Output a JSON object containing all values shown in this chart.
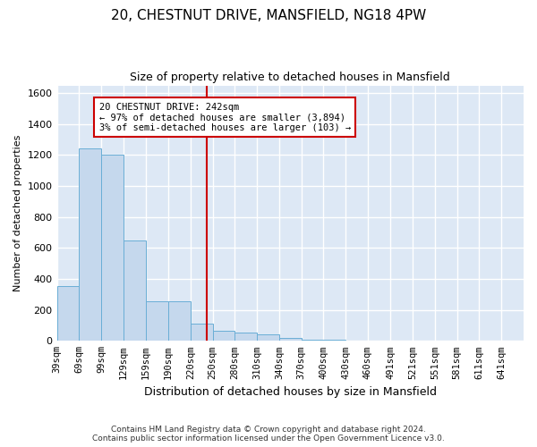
{
  "title": "20, CHESTNUT DRIVE, MANSFIELD, NG18 4PW",
  "subtitle": "Size of property relative to detached houses in Mansfield",
  "xlabel": "Distribution of detached houses by size in Mansfield",
  "ylabel": "Number of detached properties",
  "footer_line1": "Contains HM Land Registry data © Crown copyright and database right 2024.",
  "footer_line2": "Contains public sector information licensed under the Open Government Licence v3.0.",
  "annotation_line1": "20 CHESTNUT DRIVE: 242sqm",
  "annotation_line2": "← 97% of detached houses are smaller (3,894)",
  "annotation_line3": "3% of semi-detached houses are larger (103) →",
  "subject_size": 242,
  "bar_color": "#c5d8ed",
  "bar_edge_color": "#6aaed6",
  "vline_color": "#cc0000",
  "background_color": "#dde8f5",
  "grid_color": "#ffffff",
  "categories": [
    "39sqm",
    "69sqm",
    "99sqm",
    "129sqm",
    "159sqm",
    "190sqm",
    "220sqm",
    "250sqm",
    "280sqm",
    "310sqm",
    "340sqm",
    "370sqm",
    "400sqm",
    "430sqm",
    "460sqm",
    "491sqm",
    "521sqm",
    "551sqm",
    "581sqm",
    "611sqm",
    "641sqm"
  ],
  "bin_edges": [
    39,
    69,
    99,
    129,
    159,
    190,
    220,
    250,
    280,
    310,
    340,
    370,
    400,
    430,
    460,
    491,
    521,
    551,
    581,
    611,
    641,
    671
  ],
  "values": [
    355,
    1245,
    1205,
    650,
    258,
    258,
    110,
    68,
    55,
    45,
    20,
    8,
    5,
    0,
    0,
    0,
    0,
    0,
    0,
    0,
    0
  ],
  "ylim": [
    0,
    1650
  ],
  "yticks": [
    0,
    200,
    400,
    600,
    800,
    1000,
    1200,
    1400,
    1600
  ]
}
